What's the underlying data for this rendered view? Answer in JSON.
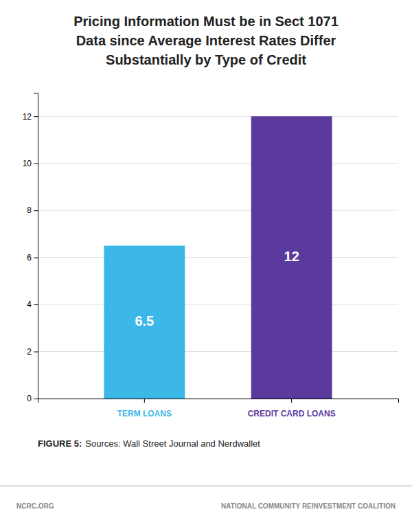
{
  "chart_data": {
    "type": "bar",
    "title": [
      "Pricing Information Must be in Sect 1071",
      "Data since Average Interest Rates Differ",
      "Substantially by Type of Credit"
    ],
    "categories": [
      "TERM LOANS",
      "CREDIT CARD LOANS"
    ],
    "values": [
      6.5,
      12
    ],
    "colors": [
      "#3bb8e8",
      "#5b3a9e"
    ],
    "ylim": [
      0,
      13
    ],
    "yticks": [
      0,
      2,
      4,
      6,
      8,
      10,
      12
    ],
    "grid": true,
    "data_labels": true,
    "caption": [
      "FIGURE 5:",
      "Sources: Wall Street Journal and Nerdwallet"
    ],
    "footer": [
      "NCRC.ORG",
      "NATIONAL COMMUNITY REINVESTMENT COALITION"
    ]
  }
}
